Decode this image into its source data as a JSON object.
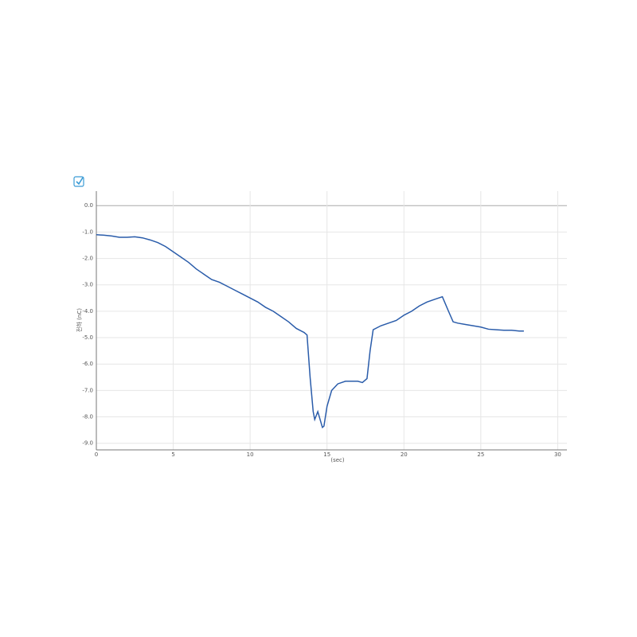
{
  "chart_data": {
    "type": "line",
    "x_label": "(sec)",
    "y_label": "전하 (nC)",
    "x": [
      0,
      0.5,
      1,
      1.5,
      2,
      2.5,
      3,
      3.5,
      4,
      4.5,
      5,
      5.5,
      6,
      6.5,
      7,
      7.5,
      8,
      8.5,
      9,
      9.5,
      10,
      10.5,
      11,
      11.5,
      12,
      12.5,
      13,
      13.5,
      13.7,
      13.9,
      14.1,
      14.2,
      14.4,
      14.5,
      14.7,
      14.8,
      15,
      15.3,
      15.7,
      16.2,
      17,
      17.3,
      17.6,
      17.8,
      18,
      18.5,
      19,
      19.5,
      20,
      20.5,
      21,
      21.5,
      22,
      22.5,
      22.9,
      23.2,
      23.5,
      24,
      24.5,
      25,
      25.5,
      26,
      26.5,
      27,
      27.5,
      27.8
    ],
    "series": [
      {
        "color": "#2a5caa",
        "values": [
          -1.1,
          -1.12,
          -1.15,
          -1.2,
          -1.2,
          -1.18,
          -1.22,
          -1.3,
          -1.4,
          -1.55,
          -1.75,
          -1.95,
          -2.15,
          -2.4,
          -2.6,
          -2.8,
          -2.9,
          -3.05,
          -3.2,
          -3.35,
          -3.5,
          -3.65,
          -3.85,
          -4.0,
          -4.2,
          -4.4,
          -4.65,
          -4.8,
          -4.9,
          -6.5,
          -7.8,
          -8.1,
          -7.8,
          -8.0,
          -8.4,
          -8.35,
          -7.6,
          -7.0,
          -6.75,
          -6.65,
          -6.65,
          -6.7,
          -6.55,
          -5.5,
          -4.7,
          -4.55,
          -4.45,
          -4.35,
          -4.15,
          -4.0,
          -3.8,
          -3.65,
          -3.55,
          -3.45,
          -4.0,
          -4.4,
          -4.45,
          -4.5,
          -4.55,
          -4.6,
          -4.68,
          -4.7,
          -4.72,
          -4.72,
          -4.75,
          -4.75
        ]
      }
    ],
    "xlim": [
      0,
      30.6
    ],
    "xticks": [
      0,
      5,
      10,
      15,
      20,
      25,
      30
    ],
    "ylim": [
      -9.25,
      0.55
    ],
    "yticks": [
      {
        "value": 0,
        "label": "0.0"
      },
      {
        "value": -1,
        "label": "-1.0"
      },
      {
        "value": -2,
        "label": "-2.0"
      },
      {
        "value": -3,
        "label": "-3.0"
      },
      {
        "value": -4,
        "label": "-4.0"
      },
      {
        "value": -5,
        "label": "-5.0"
      },
      {
        "value": -6,
        "label": "-6.0"
      },
      {
        "value": -7,
        "label": "-7.0"
      },
      {
        "value": -8,
        "label": "-8.0"
      },
      {
        "value": -9,
        "label": "-9.0"
      }
    ],
    "grid": true
  }
}
